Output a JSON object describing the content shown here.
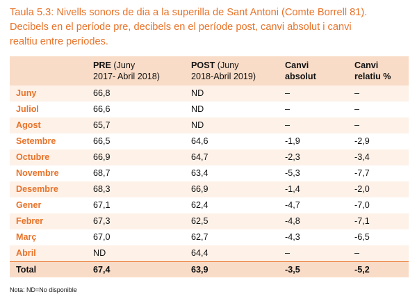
{
  "caption": {
    "line1": "Taula 5.3: Nivells sonors de dia a la superilla de Sant Antoni (Comte Borrell 81).",
    "line2": "Decibels en el període pre, decibels en el període post, canvi absolut i canvi",
    "line3": "realtiu entre períodes."
  },
  "header": {
    "pre_bold": "PRE",
    "pre_rest1": " (Juny",
    "pre_line2": "2017- Abril 2018)",
    "post_bold": "POST",
    "post_rest1": " (Juny",
    "post_line2": "2018-Abril 2019)",
    "abs_line1": "Canvi",
    "abs_line2": "absolut",
    "rel_line1": "Canvi",
    "rel_line2": "relatiu %"
  },
  "rows": [
    {
      "month": "Juny",
      "pre": "66,8",
      "post": "ND",
      "abs": "–",
      "rel": "–"
    },
    {
      "month": "Juliol",
      "pre": "66,6",
      "post": "ND",
      "abs": "–",
      "rel": "–"
    },
    {
      "month": "Agost",
      "pre": "65,7",
      "post": "ND",
      "abs": "–",
      "rel": "–"
    },
    {
      "month": "Setembre",
      "pre": "66,5",
      "post": "64,6",
      "abs": "-1,9",
      "rel": "-2,9"
    },
    {
      "month": "Octubre",
      "pre": "66,9",
      "post": "64,7",
      "abs": "-2,3",
      "rel": "-3,4"
    },
    {
      "month": "Novembre",
      "pre": "68,7",
      "post": "63,4",
      "abs": "-5,3",
      "rel": "-7,7"
    },
    {
      "month": "Desembre",
      "pre": "68,3",
      "post": "66,9",
      "abs": "-1,4",
      "rel": "-2,0"
    },
    {
      "month": "Gener",
      "pre": "67,1",
      "post": "62,4",
      "abs": "-4,7",
      "rel": "-7,0"
    },
    {
      "month": "Febrer",
      "pre": "67,3",
      "post": "62,5",
      "abs": "-4,8",
      "rel": "-7,1"
    },
    {
      "month": "Març",
      "pre": "67,0",
      "post": "62,7",
      "abs": "-4,3",
      "rel": "-6,5"
    },
    {
      "month": "Abril",
      "pre": "ND",
      "post": "64,4",
      "abs": "–",
      "rel": "–"
    }
  ],
  "total": {
    "label": "Total",
    "pre": "67,4",
    "post": "63,9",
    "abs": "-3,5",
    "rel": "-5,2"
  },
  "note": "Nota: ND=No disponible",
  "colors": {
    "accent": "#e8732a",
    "header_bg": "#f9dcc7",
    "stripe_bg": "#fdf1e8"
  }
}
